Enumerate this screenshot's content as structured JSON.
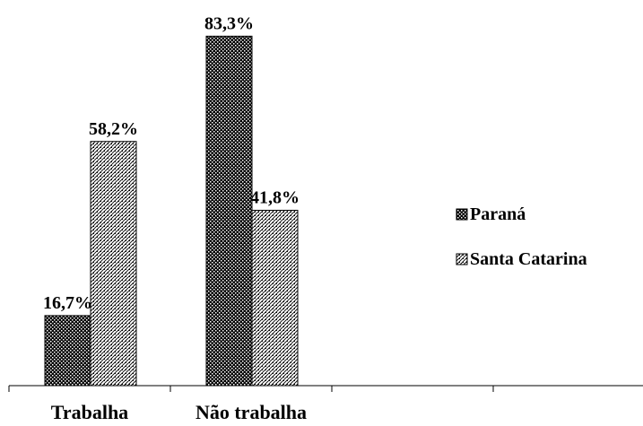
{
  "chart_data": {
    "type": "bar",
    "categories": [
      "Trabalha",
      "Não trabalha",
      null,
      null
    ],
    "series": [
      {
        "name": "Paraná",
        "values": [
          16.7,
          83.3,
          null,
          null
        ],
        "value_labels": [
          "16,7%",
          "83,3%",
          null,
          null
        ]
      },
      {
        "name": "Santa Catarina",
        "values": [
          58.2,
          41.8,
          null,
          null
        ],
        "value_labels": [
          "58,2%",
          "41,8%",
          null,
          null
        ]
      }
    ],
    "ylim": [
      0,
      90
    ],
    "legend": "right"
  }
}
